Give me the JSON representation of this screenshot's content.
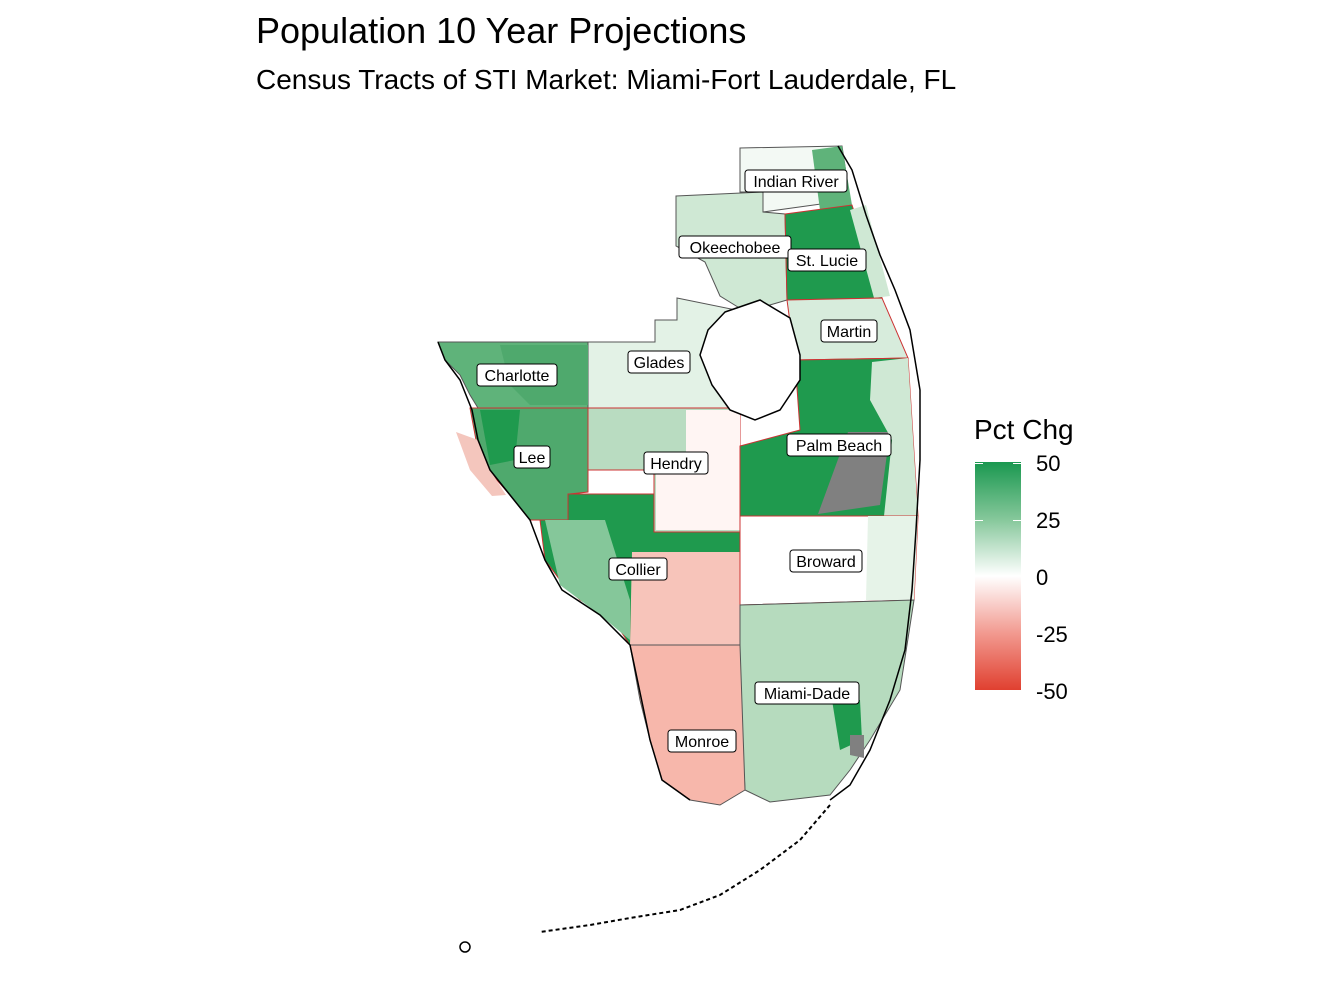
{
  "title": "Population 10 Year Projections",
  "subtitle": "Census Tracts of STI Market: Miami-Fort Lauderdale, FL",
  "legend": {
    "title": "Pct Chg",
    "ticks": [
      "50",
      "25",
      "0",
      "-25",
      "-50"
    ],
    "colors": {
      "high": "#1a9850",
      "mid": "#ffffff",
      "low": "#e04030",
      "na": "#808080"
    }
  },
  "counties": [
    {
      "name": "Indian River",
      "fill": "#f3f9f4"
    },
    {
      "name": "Okeechobee",
      "fill": "#cfe8d4"
    },
    {
      "name": "St. Lucie",
      "fill": "#1f9a4e"
    },
    {
      "name": "Martin",
      "fill": "#d7ecdc"
    },
    {
      "name": "Charlotte",
      "fill": "#5fb37a"
    },
    {
      "name": "Glades",
      "fill": "#e3f2e6"
    },
    {
      "name": "Lee",
      "fill": "#4fa96d"
    },
    {
      "name": "Hendry",
      "fill": "#b9dcc1"
    },
    {
      "name": "Palm Beach",
      "fill": "#1f9a4e"
    },
    {
      "name": "Collier",
      "fill": "#1f9a4e"
    },
    {
      "name": "Broward",
      "fill": "#ffffff"
    },
    {
      "name": "Miami-Dade",
      "fill": "#b6dbbe"
    },
    {
      "name": "Monroe",
      "fill": "#f7b7ab"
    }
  ]
}
